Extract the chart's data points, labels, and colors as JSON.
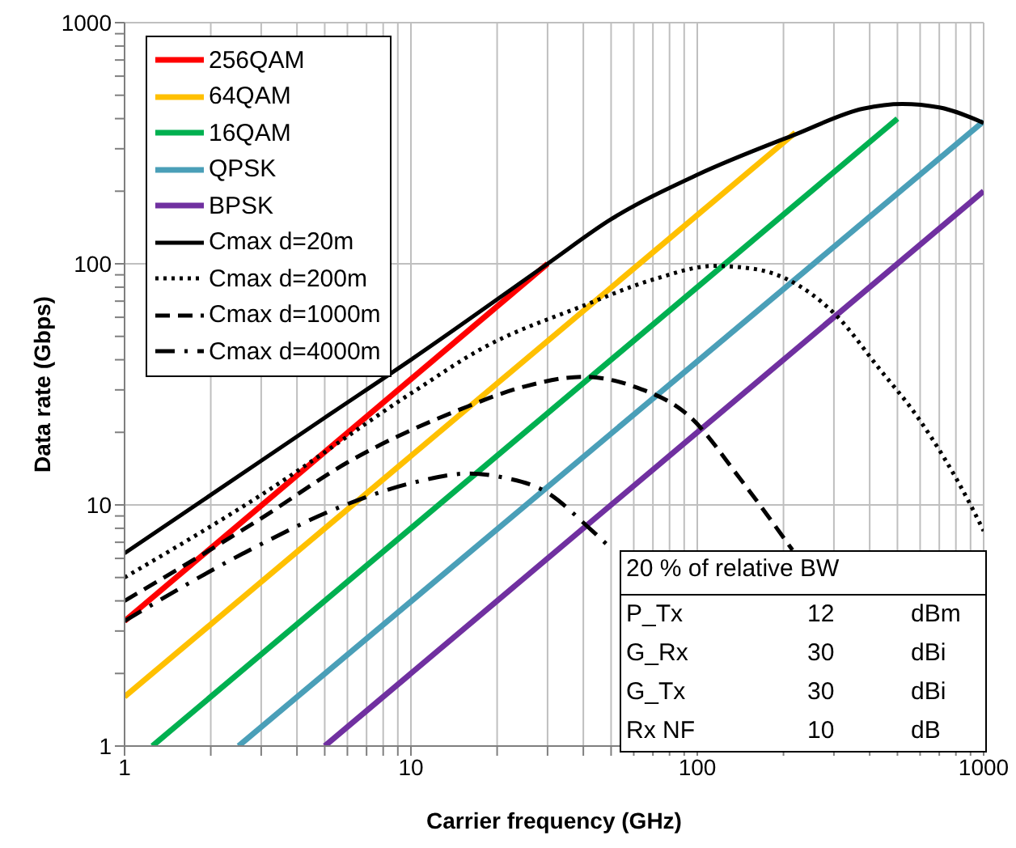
{
  "chart_data": {
    "type": "line",
    "xlabel": "Carrier frequency (GHz)",
    "ylabel": "Data rate (Gbps)",
    "log": "xy",
    "xlim": [
      1,
      1000
    ],
    "ylim": [
      1,
      1000
    ],
    "xticks": [
      1,
      {
        "value": 2,
        "label": null
      },
      {
        "value": 3,
        "label": null
      },
      {
        "value": 4,
        "label": null
      },
      {
        "value": 5,
        "label": null
      },
      {
        "value": 6,
        "label": null
      },
      {
        "value": 7,
        "label": null
      },
      {
        "value": 8,
        "label": null
      },
      {
        "value": 9,
        "label": null
      },
      10,
      {
        "value": 20,
        "label": null
      },
      {
        "value": 30,
        "label": null
      },
      {
        "value": 40,
        "label": null
      },
      {
        "value": 50,
        "label": null
      },
      {
        "value": 60,
        "label": null
      },
      {
        "value": 70,
        "label": null
      },
      {
        "value": 80,
        "label": null
      },
      {
        "value": 90,
        "label": null
      },
      100,
      {
        "value": 200,
        "label": null
      },
      {
        "value": 300,
        "label": null
      },
      {
        "value": 400,
        "label": null
      },
      {
        "value": 500,
        "label": null
      },
      {
        "value": 600,
        "label": null
      },
      {
        "value": 700,
        "label": null
      },
      {
        "value": 800,
        "label": null
      },
      {
        "value": 900,
        "label": null
      },
      1000
    ],
    "yticks": [
      1,
      {
        "value": 2,
        "label": null
      },
      {
        "value": 3,
        "label": null
      },
      {
        "value": 4,
        "label": null
      },
      {
        "value": 5,
        "label": null
      },
      {
        "value": 6,
        "label": null
      },
      {
        "value": 7,
        "label": null
      },
      {
        "value": 8,
        "label": null
      },
      {
        "value": 9,
        "label": null
      },
      10,
      {
        "value": 20,
        "label": null
      },
      {
        "value": 30,
        "label": null
      },
      {
        "value": 40,
        "label": null
      },
      {
        "value": 50,
        "label": null
      },
      {
        "value": 60,
        "label": null
      },
      {
        "value": 70,
        "label": null
      },
      {
        "value": 80,
        "label": null
      },
      {
        "value": 90,
        "label": null
      },
      100,
      {
        "value": 200,
        "label": null
      },
      {
        "value": 300,
        "label": null
      },
      {
        "value": 400,
        "label": null
      },
      {
        "value": 500,
        "label": null
      },
      {
        "value": 600,
        "label": null
      },
      {
        "value": 700,
        "label": null
      },
      {
        "value": 800,
        "label": null
      },
      {
        "value": 900,
        "label": null
      },
      1000
    ],
    "grid": true,
    "legend": "top left",
    "marker": "none",
    "series": [
      {
        "name": "256QAM",
        "color": "#ff0000",
        "line_style": "solid",
        "x": [
          1,
          30
        ],
        "values": [
          3.3,
          100
        ]
      },
      {
        "name": "64QAM",
        "color": "#ffc000",
        "line_style": "solid",
        "x": [
          1,
          220
        ],
        "values": [
          1.6,
          350
        ]
      },
      {
        "name": "16QAM",
        "color": "#00b050",
        "line_style": "solid",
        "x": [
          1.25,
          500
        ],
        "values": [
          1,
          400
        ]
      },
      {
        "name": "QPSK",
        "color": "#4a9fb8",
        "line_style": "solid",
        "x": [
          2.5,
          1000
        ],
        "values": [
          1,
          390
        ]
      },
      {
        "name": "BPSK",
        "color": "#7030a0",
        "line_style": "solid",
        "x": [
          5,
          1000
        ],
        "values": [
          1,
          200
        ]
      },
      {
        "name": "Cmax d=20m",
        "color": "#000000",
        "line_style": "solid",
        "x": [
          1,
          2,
          5,
          10,
          30,
          50,
          100,
          220,
          380,
          520,
          700,
          1000
        ],
        "values": [
          6.3,
          11,
          23,
          40,
          100,
          153,
          234,
          344,
          440,
          460,
          445,
          384
        ]
      },
      {
        "name": "Cmax d=200m",
        "color": "#000000",
        "line_style": "dotted",
        "x": [
          1,
          3,
          10,
          18,
          40,
          70,
          115,
          160,
          207,
          306,
          430,
          590,
          900,
          1000
        ],
        "values": [
          5,
          11,
          29,
          45,
          67,
          86,
          98,
          95,
          86,
          61,
          37,
          23,
          10,
          7.8
        ]
      },
      {
        "name": "Cmax d=1000m",
        "color": "#000000",
        "line_style": "dashed",
        "x": [
          1,
          3,
          6,
          15,
          25,
          40,
          60,
          95,
          140,
          215
        ],
        "values": [
          4,
          8.8,
          15,
          25,
          31,
          34,
          31,
          23,
          13,
          6.5
        ]
      },
      {
        "name": "Cmax d=4000m",
        "color": "#000000",
        "line_style": "dashdot",
        "x": [
          1,
          2.6,
          5.9,
          10,
          16,
          21,
          29,
          43,
          50
        ],
        "values": [
          3.3,
          6.3,
          10,
          12.3,
          13.5,
          13,
          11.5,
          7.8,
          6.6
        ]
      }
    ],
    "annotations": [
      "20 % of relative BW",
      "P_Tx  12  dBm",
      "G_Rx  30  dBi",
      "G_Tx  30  dBi",
      "Rx NF  10  dB"
    ]
  }
}
